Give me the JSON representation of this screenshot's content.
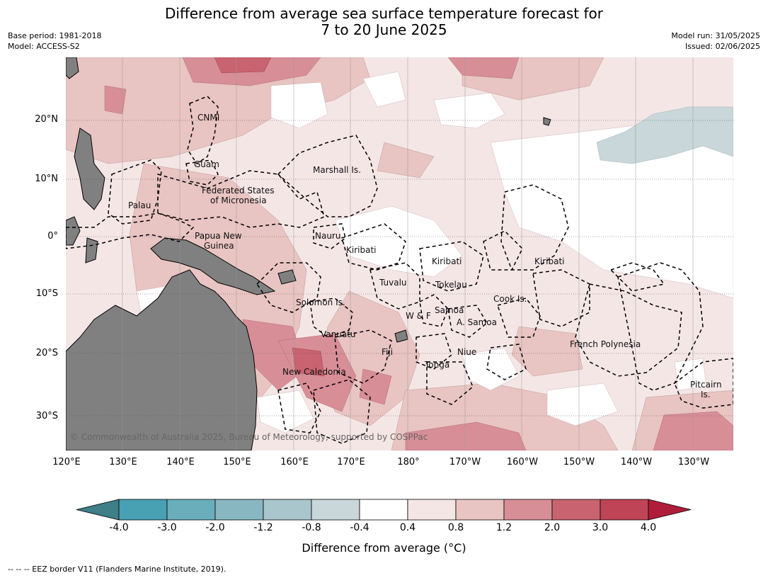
{
  "header": {
    "title_line1": "Difference from average sea surface temperature forecast for",
    "title_line2": "7 to 20 June 2025",
    "base_period": "Base period: 1981-2018",
    "model": "Model: ACCESS-S2",
    "model_run": "Model run: 31/05/2025",
    "issued": "Issued: 02/06/2025"
  },
  "map": {
    "latitude_labels": [
      "20°N",
      "10°N",
      "0°",
      "10°S",
      "20°S",
      "30°S"
    ],
    "longitude_labels": [
      "120°E",
      "130°E",
      "140°E",
      "150°E",
      "160°E",
      "170°E",
      "180°",
      "170°W",
      "160°W",
      "150°W",
      "140°W",
      "130°W"
    ],
    "places": {
      "cnmi": "CNMI",
      "guam": "Guam",
      "marshall": "Marshall Is.",
      "fsm_1": "Federated States",
      "fsm_2": "of Micronesia",
      "palau": "Palau",
      "png_1": "Papua New",
      "png_2": "Guinea",
      "nauru": "Nauru",
      "kiribati_w": "Kiribati",
      "kiribati_c": "Kiribati",
      "kiribati_e": "Kiribati",
      "tuvalu": "Tuvalu",
      "tokelau": "Tokelau",
      "cook": "Cook Is.",
      "solomon": "Solomon Is.",
      "samoa": "Samoa",
      "wf": "W & F",
      "asamoa": "A. Samoa",
      "vanuatu": "Vanuatu",
      "fiji": "Fiji",
      "niue": "Niue",
      "tonga": "Tonga",
      "french_polynesia": "French Polynesia",
      "pitcairn_1": "Pitcairn",
      "pitcairn_2": "Is.",
      "new_caledonia": "New Caledonia"
    },
    "copyright": "© Commonwealth of Australia 2025, Bureau of Meteorology, supported by COSPPac",
    "land_color": "#808080"
  },
  "colorbar": {
    "title": "Difference from average (°C)",
    "ticks": [
      "-4.0",
      "-3.0",
      "-2.0",
      "-1.2",
      "-0.8",
      "-0.4",
      "0.4",
      "0.8",
      "1.2",
      "2.0",
      "3.0",
      "4.0"
    ],
    "colors": [
      "#3e7f88",
      "#48a0b3",
      "#6aaebc",
      "#88b7c2",
      "#a8c6cb",
      "#c9d7da",
      "#ffffff",
      "#f5e6e6",
      "#e8c4c2",
      "#d88e97",
      "#c8636f",
      "#bf4455",
      "#b01d3a"
    ]
  },
  "footnote": "--  --  -- EEZ border V11 (Flanders Marine Institute, 2019)."
}
